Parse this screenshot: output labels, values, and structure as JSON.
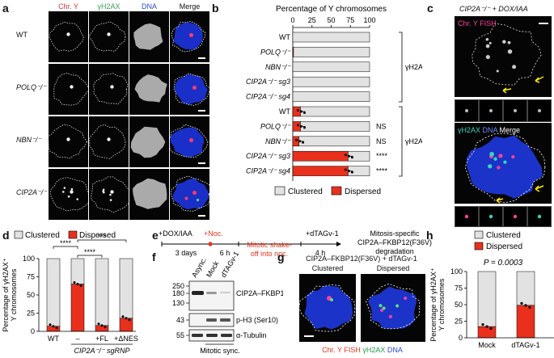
{
  "panel_a": {
    "label": "a",
    "columns": [
      "Chr. Y",
      "γH2AX",
      "DNA",
      "Merge"
    ],
    "column_colors": [
      "#e03030",
      "#3aa05a",
      "#2a4bd8",
      "#111111"
    ],
    "rows": [
      {
        "label": "WT",
        "italic": false
      },
      {
        "label": "POLQ⁻/⁻",
        "italic": true
      },
      {
        "label": "NBN⁻/⁻",
        "italic": true
      },
      {
        "label": "CIP2A⁻/⁻",
        "italic": true
      }
    ]
  },
  "panel_b": {
    "label": "b",
    "title": "Percentage of Y chromosomes",
    "ticks": [
      "0",
      "25",
      "50",
      "75",
      "100"
    ],
    "legend": {
      "clustered": "Clustered",
      "dispersed": "Dispersed"
    },
    "group_neg": "γH2AX⁻",
    "group_pos": "γH2AX⁺",
    "colors": {
      "clustered": "#e2e2e2",
      "dispersed": "#e8301c"
    }
  },
  "panel_c": {
    "label": "c",
    "title": "CIP2A⁻/⁻ + DOX/IAA",
    "fish_label": "Chr. Y FISH",
    "merge_label_1": "γH2AX",
    "merge_label_2": "DNA",
    "merge_label_3": "Merge"
  },
  "panel_d": {
    "label": "d",
    "ylabel_line1": "Percentage of γH2AX⁺",
    "ylabel_line2": "Y chromosomes",
    "ticks": [
      "0",
      "25",
      "50",
      "75",
      "100"
    ],
    "legend": {
      "clustered": "Clustered",
      "dispersed": "Dispersed"
    },
    "xcat": [
      "WT",
      "–",
      "+FL",
      "+ΔNES"
    ],
    "sub_label": "CIP2A⁻/⁻ sgRNP",
    "sig": [
      "****",
      "****",
      "***"
    ]
  },
  "panel_e": {
    "label": "e",
    "steps": {
      "dox": "+DOX/IAA",
      "noc": "+Noc.",
      "shake1": "Mitotic shake-",
      "shake2": "off into noc.",
      "dtag": "+dTAGv-1",
      "days": "3 days",
      "h6": "6 h",
      "h4": "4 h",
      "res1": "Mitosis-specific",
      "res2": "CIP2A–FKBP12(F36V)",
      "res3": "degradation"
    }
  },
  "panel_f": {
    "label": "f",
    "lanes": [
      "Async.",
      "Mock",
      "dTAGv-1"
    ],
    "mw": [
      "250",
      "180",
      "130",
      "43",
      "55"
    ],
    "bands": [
      "CIP2A–FKBP12(F36V)",
      "p-H3 (Ser10)",
      "α-Tubulin"
    ],
    "footer": "Mitotic sync."
  },
  "panel_g": {
    "label": "g",
    "title": "CIP2A–FKBP12(F36V) + dTAGv-1",
    "sub1": "Clustered",
    "sub2": "Dispersed",
    "leg1": "Chr. Y FISH",
    "leg2": "γH2AX",
    "leg3": "DNA"
  },
  "panel_h": {
    "label": "h",
    "legend": {
      "clustered": "Clustered",
      "dispersed": "Dispersed"
    },
    "pvalue": "P = 0.0003",
    "ylabel_line1": "Percentage of γH2AX⁺",
    "ylabel_line2": "Y chromosomes",
    "ticks": [
      "0",
      "25",
      "50",
      "75",
      "100"
    ],
    "xcat": [
      "Mock",
      "dTAGv-1"
    ]
  },
  "chart_data": [
    {
      "type": "bar",
      "title": "Percentage of Y chromosomes",
      "orientation": "horizontal-stacked",
      "xlim": [
        0,
        100
      ],
      "categories": [
        "WT",
        "POLQ⁻/⁻",
        "NBN⁻/⁻",
        "CIP2A⁻/⁻ sg3",
        "CIP2A⁻/⁻ sg4",
        "WT",
        "POLQ⁻/⁻",
        "NBN⁻/⁻",
        "CIP2A⁻/⁻ sg3",
        "CIP2A⁻/⁻ sg4"
      ],
      "series": [
        {
          "name": "Dispersed",
          "values": [
            0,
            1,
            0,
            0,
            0,
            10,
            10,
            8,
            72,
            72
          ]
        },
        {
          "name": "Clustered",
          "values": [
            100,
            99,
            100,
            100,
            100,
            90,
            90,
            92,
            28,
            28
          ]
        }
      ],
      "significance": [
        "",
        "",
        "",
        "",
        "",
        "",
        "NS",
        "NS",
        "****",
        "****"
      ]
    },
    {
      "type": "bar",
      "orientation": "vertical-stacked",
      "ylim": [
        0,
        100
      ],
      "categories": [
        "WT",
        "–",
        "+FL",
        "+ΔNES"
      ],
      "series": [
        {
          "name": "Dispersed",
          "values": [
            7,
            65,
            8,
            18
          ]
        },
        {
          "name": "Clustered",
          "values": [
            93,
            35,
            92,
            82
          ]
        }
      ]
    },
    {
      "type": "bar",
      "orientation": "vertical-stacked",
      "ylim": [
        0,
        100
      ],
      "categories": [
        "Mock",
        "dTAGv-1"
      ],
      "series": [
        {
          "name": "Dispersed",
          "values": [
            17,
            49
          ]
        },
        {
          "name": "Clustered",
          "values": [
            83,
            51
          ]
        }
      ]
    }
  ]
}
